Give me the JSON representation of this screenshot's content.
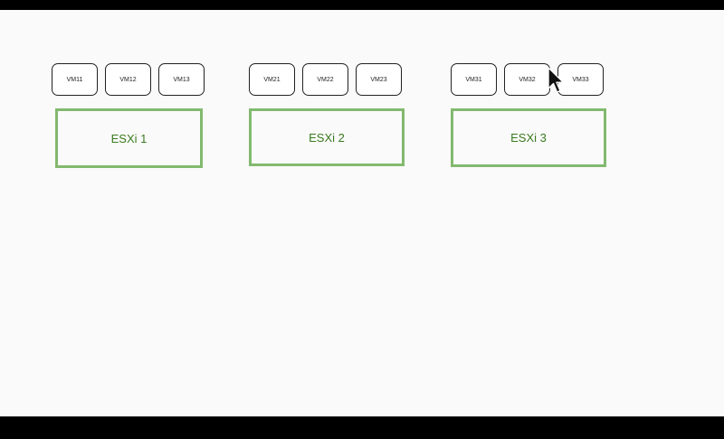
{
  "clusters": [
    {
      "host": "ESXi 1",
      "vms": [
        "VM11",
        "VM12",
        "VM13"
      ]
    },
    {
      "host": "ESXi 2",
      "vms": [
        "VM21",
        "VM22",
        "VM23"
      ]
    },
    {
      "host": "ESXi 3",
      "vms": [
        "VM31",
        "VM32",
        "VM33"
      ]
    }
  ],
  "colors": {
    "host_border": "#82b96e",
    "host_text": "#3a7a1f",
    "vm_border": "#222222",
    "background": "#fafafa"
  },
  "icons": {
    "cursor": "mouse-pointer-icon"
  }
}
